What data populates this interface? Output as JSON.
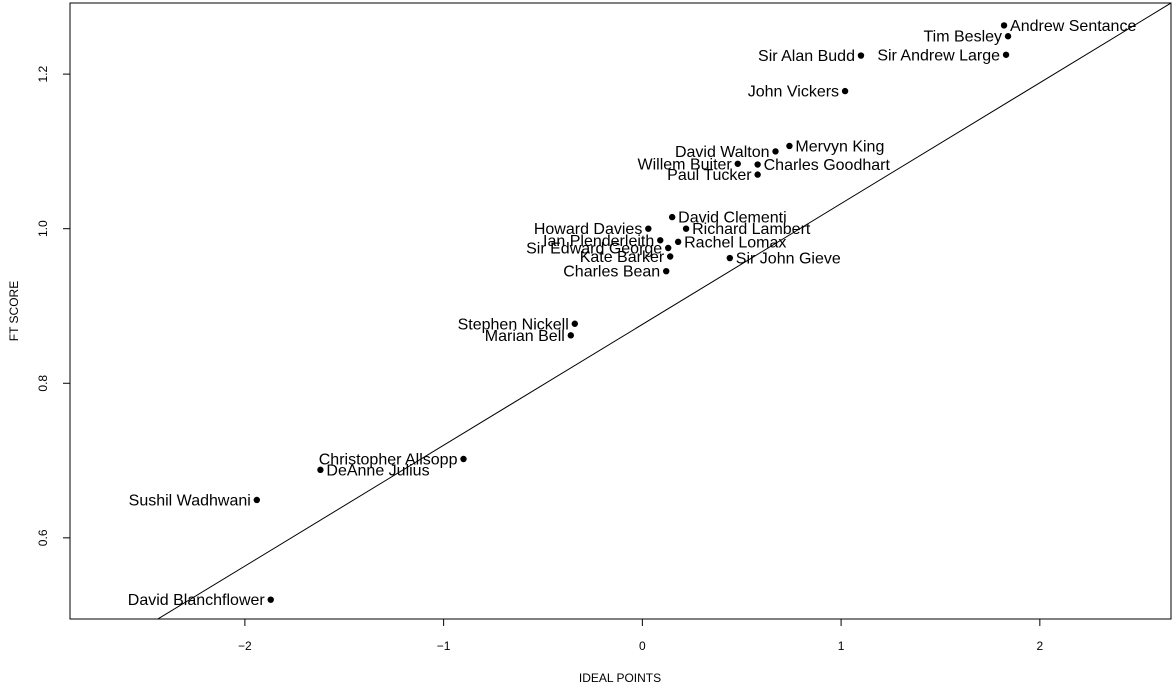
{
  "chart_data": {
    "type": "scatter",
    "title": "",
    "xlabel": "IDEAL POINTS",
    "ylabel": "FT SCORE",
    "xlim": [
      -2.88,
      2.66
    ],
    "ylim": [
      0.495,
      1.292
    ],
    "x_ticks": [
      -2,
      -1,
      0,
      1,
      2
    ],
    "x_tick_labels": [
      "−2",
      "−1",
      "0",
      "1",
      "2"
    ],
    "y_ticks": [
      0.6,
      0.8,
      1.0,
      1.2
    ],
    "y_tick_labels": [
      "0.6",
      "0.8",
      "1.0",
      "1.2"
    ],
    "grid": false,
    "fit_line": {
      "points": [
        [
          -2.47,
          0.49
        ],
        [
          2.66,
          1.292
        ]
      ]
    },
    "points": [
      {
        "label": "Andrew Sentance",
        "x": 1.82,
        "y": 1.263,
        "label_side": "right"
      },
      {
        "label": "Tim Besley",
        "x": 1.84,
        "y": 1.249,
        "label_side": "left"
      },
      {
        "label": "Sir Andrew Large",
        "x": 1.83,
        "y": 1.225,
        "label_side": "left"
      },
      {
        "label": "Sir Alan Budd",
        "x": 1.1,
        "y": 1.224,
        "label_side": "left"
      },
      {
        "label": "John Vickers",
        "x": 1.02,
        "y": 1.178,
        "label_side": "left"
      },
      {
        "label": "Mervyn King",
        "x": 0.74,
        "y": 1.107,
        "label_side": "right"
      },
      {
        "label": "David Walton",
        "x": 0.67,
        "y": 1.1,
        "label_side": "left"
      },
      {
        "label": "Charles Goodhart",
        "x": 0.58,
        "y": 1.083,
        "label_side": "right"
      },
      {
        "label": "Willem Buiter",
        "x": 0.48,
        "y": 1.084,
        "label_side": "left"
      },
      {
        "label": "Paul Tucker",
        "x": 0.58,
        "y": 1.07,
        "label_side": "left"
      },
      {
        "label": "David Clementi",
        "x": 0.15,
        "y": 1.015,
        "label_side": "right"
      },
      {
        "label": "Richard Lambert",
        "x": 0.22,
        "y": 1.0,
        "label_side": "right"
      },
      {
        "label": "Howard Davies",
        "x": 0.03,
        "y": 1.0,
        "label_side": "left"
      },
      {
        "label": "Rachel Lomax",
        "x": 0.18,
        "y": 0.983,
        "label_side": "right"
      },
      {
        "label": "Ian Plenderleith",
        "x": 0.09,
        "y": 0.985,
        "label_side": "left"
      },
      {
        "label": "Sir Edward George",
        "x": 0.13,
        "y": 0.975,
        "label_side": "left"
      },
      {
        "label": "Kate Barker",
        "x": 0.14,
        "y": 0.964,
        "label_side": "left"
      },
      {
        "label": "Sir John Gieve",
        "x": 0.44,
        "y": 0.962,
        "label_side": "right"
      },
      {
        "label": "Charles Bean",
        "x": 0.12,
        "y": 0.945,
        "label_side": "left"
      },
      {
        "label": "Stephen Nickell",
        "x": -0.34,
        "y": 0.877,
        "label_side": "left"
      },
      {
        "label": "Marian Bell",
        "x": -0.36,
        "y": 0.862,
        "label_side": "left"
      },
      {
        "label": "Christopher Allsopp",
        "x": -0.9,
        "y": 0.702,
        "label_side": "left"
      },
      {
        "label": "DeAnne Julius",
        "x": -1.62,
        "y": 0.688,
        "label_side": "right"
      },
      {
        "label": "Sushil Wadhwani",
        "x": -1.94,
        "y": 0.649,
        "label_side": "left"
      },
      {
        "label": "David Blanchflower",
        "x": -1.87,
        "y": 0.52,
        "label_side": "left"
      }
    ]
  }
}
